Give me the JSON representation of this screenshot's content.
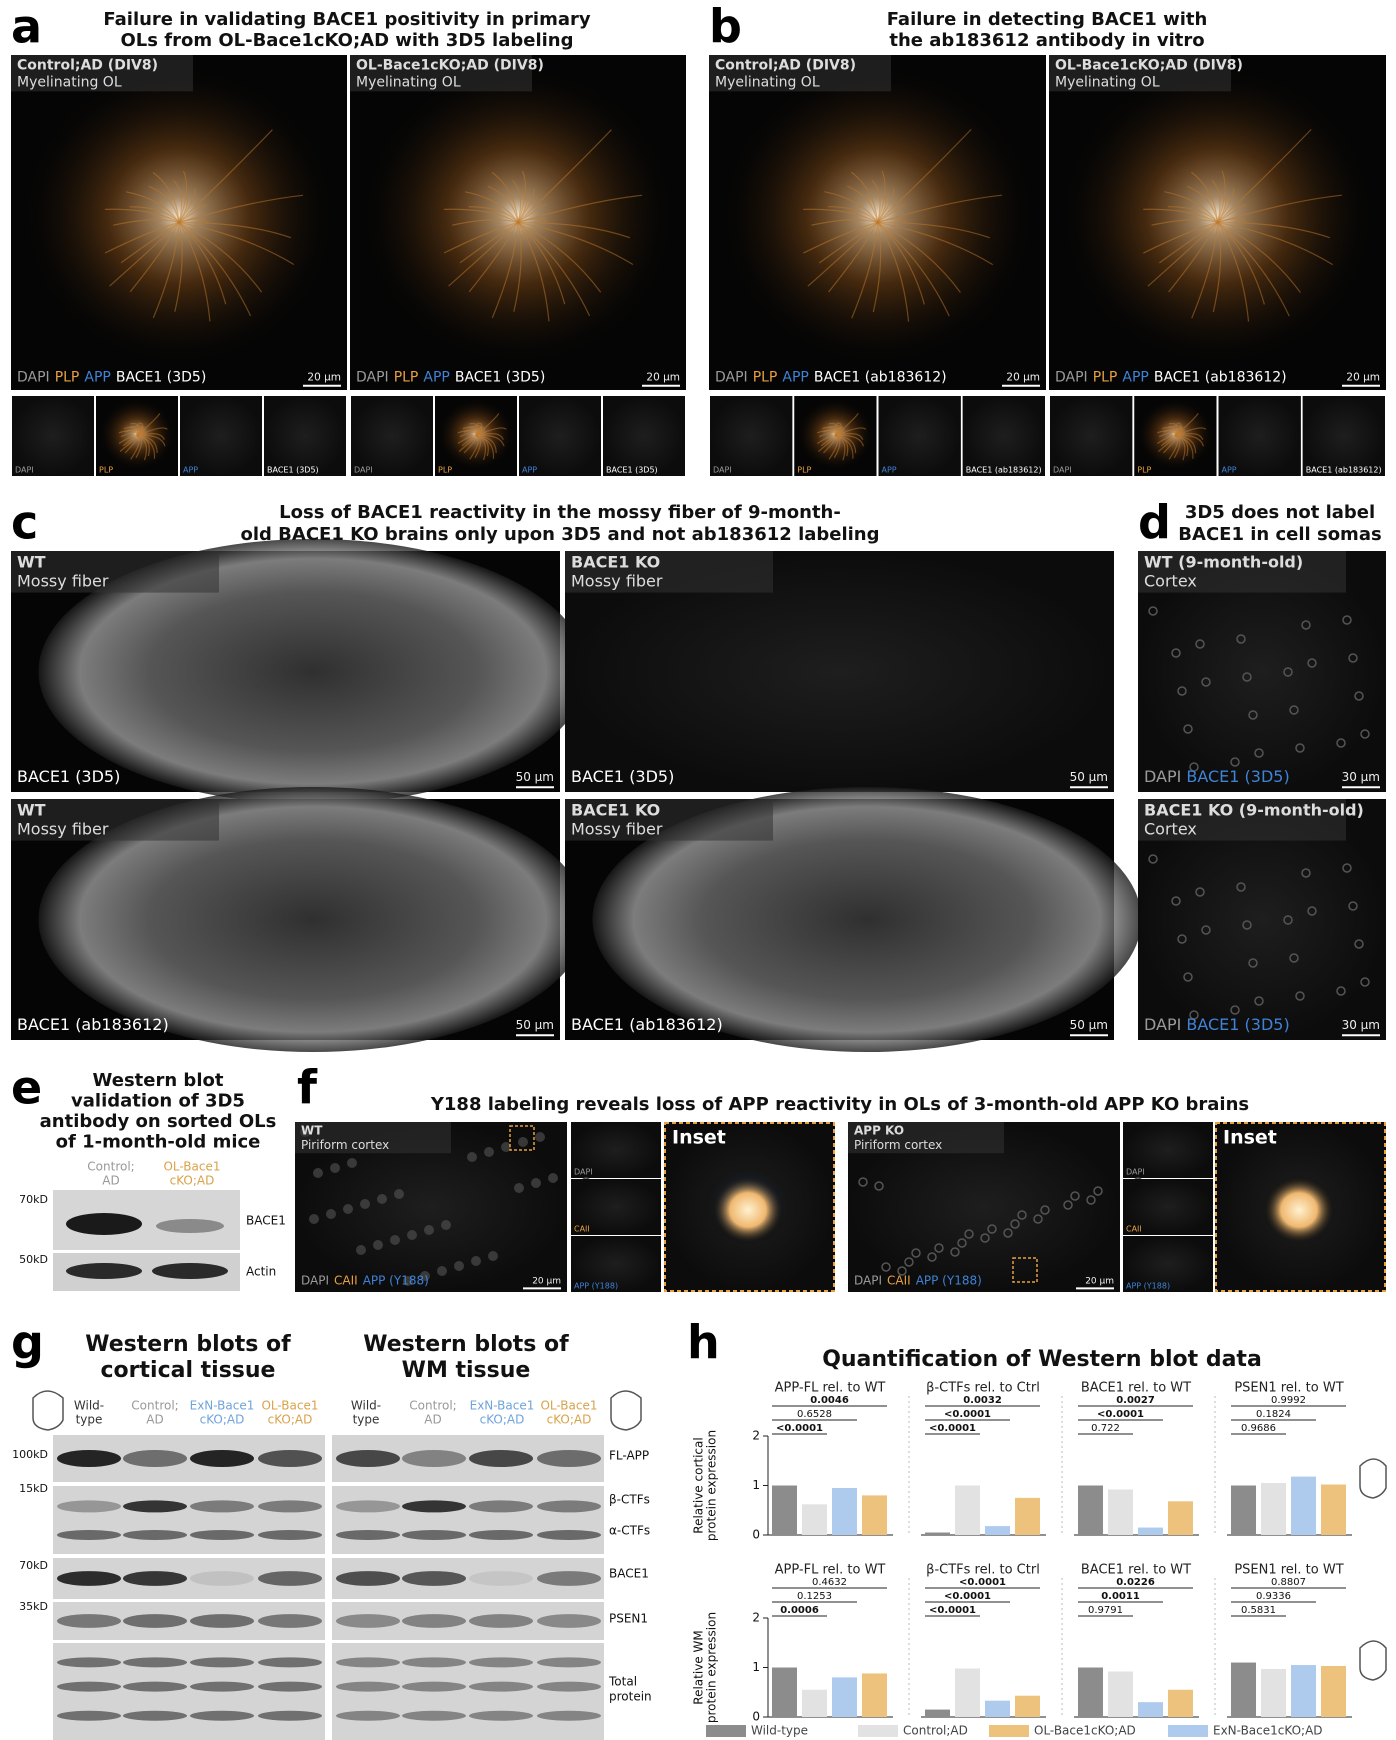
{
  "panels": {
    "a": {
      "letter": "a",
      "title": [
        "Failure in validating BACE1 positivity in primary",
        "OLs from OL-Bace1cKO;AD with 3D5 labeling"
      ],
      "channel_colors": [
        "#9a9a9a",
        "#e8a040",
        "#3f82d6",
        "#ffffff"
      ],
      "images": [
        {
          "label": [
            "Control;AD (DIV8)",
            "Myelinating OL"
          ],
          "channels": [
            "DAPI",
            "PLP",
            "APP",
            "BACE1 (3D5)"
          ],
          "scale": "20 µm",
          "thumbs": [
            "DAPI",
            "PLP",
            "APP",
            "BACE1 (3D5)"
          ]
        },
        {
          "label": [
            "OL-Bace1cKO;AD (DIV8)",
            "Myelinating OL"
          ],
          "channels": [
            "DAPI",
            "PLP",
            "APP",
            "BACE1 (3D5)"
          ],
          "scale": "20 µm",
          "thumbs": [
            "DAPI",
            "PLP",
            "APP",
            "BACE1 (3D5)"
          ]
        }
      ]
    },
    "b": {
      "letter": "b",
      "title": [
        "Failure in detecting BACE1 with",
        "the ab183612 antibody in vitro"
      ],
      "channel_colors": [
        "#9a9a9a",
        "#e8a040",
        "#3f82d6",
        "#ffffff"
      ],
      "images": [
        {
          "label": [
            "Control;AD (DIV8)",
            "Myelinating OL"
          ],
          "channels": [
            "DAPI",
            "PLP",
            "APP",
            "BACE1 (ab183612)"
          ],
          "scale": "20 µm",
          "thumbs": [
            "DAPI",
            "PLP",
            "APP",
            "BACE1 (ab183612)"
          ]
        },
        {
          "label": [
            "OL-Bace1cKO;AD (DIV8)",
            "Myelinating OL"
          ],
          "channels": [
            "DAPI",
            "PLP",
            "APP",
            "BACE1 (ab183612)"
          ],
          "scale": "20 µm",
          "thumbs": [
            "DAPI",
            "PLP",
            "APP",
            "BACE1 (ab183612)"
          ]
        }
      ]
    },
    "c": {
      "letter": "c",
      "title": [
        "Loss of BACE1 reactivity in the mossy fiber of 9-month-",
        "old BACE1 KO brains only upon 3D5 and not ab183612 labeling"
      ],
      "channel_colors": [
        "#ffffff"
      ],
      "images": [
        {
          "label": [
            "WT",
            "Mossy fiber"
          ],
          "channels": [
            "BACE1 (3D5)"
          ],
          "scale": "50 µm"
        },
        {
          "label": [
            "BACE1 KO",
            "Mossy fiber"
          ],
          "channels": [
            "BACE1 (3D5)"
          ],
          "scale": "50 µm"
        },
        {
          "label": [
            "WT",
            "Mossy fiber"
          ],
          "channels": [
            "BACE1 (ab183612)"
          ],
          "scale": "50 µm"
        },
        {
          "label": [
            "BACE1 KO",
            "Mossy fiber"
          ],
          "channels": [
            "BACE1 (ab183612)"
          ],
          "scale": "50 µm"
        }
      ]
    },
    "d": {
      "letter": "d",
      "title": [
        "3D5 does not label",
        "BACE1 in cell somas"
      ],
      "channel_colors": [
        "#9a9a9a",
        "#3f82d6"
      ],
      "images": [
        {
          "label": [
            "WT (9-month-old)",
            "Cortex"
          ],
          "channels": [
            "DAPI",
            "BACE1 (3D5)"
          ],
          "scale": "30 µm"
        },
        {
          "label": [
            "BACE1 KO (9-month-old)",
            "Cortex"
          ],
          "channels": [
            "DAPI",
            "BACE1 (3D5)"
          ],
          "scale": "30 µm"
        }
      ]
    },
    "e": {
      "letter": "e",
      "title": [
        "Western blot",
        "validation of 3D5",
        "antibody on sorted OLs",
        "of 1-month-old mice"
      ],
      "columns": [
        {
          "lines": [
            "Control;",
            "AD"
          ],
          "color": "#999999"
        },
        {
          "lines": [
            "OL-Bace1",
            "cKO;AD"
          ],
          "color": "#d9a24a"
        }
      ],
      "markers": [
        "70kD",
        "50kD"
      ],
      "bands": [
        "BACE1",
        "Actin"
      ]
    },
    "f": {
      "letter": "f",
      "title": [
        "Y188 labeling reveals loss of APP reactivity in OLs of 3-month-old APP KO brains"
      ],
      "channel_colors": [
        "#9a9a9a",
        "#e8a040",
        "#3f82d6"
      ],
      "images": [
        {
          "label": [
            "WT",
            "Piriform cortex"
          ],
          "channels": [
            "DAPI",
            "CAII",
            "APP (Y188)"
          ],
          "scale": "20 µm",
          "thumbs": [
            "DAPI",
            "CAII",
            "APP (Y188)"
          ],
          "inset": "Inset"
        },
        {
          "label": [
            "APP KO",
            "Piriform cortex"
          ],
          "channels": [
            "DAPI",
            "CAII",
            "APP (Y188)"
          ],
          "scale": "20 µm",
          "thumbs": [
            "DAPI",
            "CAII",
            "APP (Y188)"
          ],
          "inset": "Inset"
        }
      ]
    },
    "g": {
      "letter": "g",
      "titles": [
        [
          "Western blots of",
          "cortical tissue"
        ],
        [
          "Western blots of",
          "WM tissue"
        ]
      ],
      "columns": [
        {
          "lines": [
            "Wild-",
            "type"
          ],
          "color": "#333333"
        },
        {
          "lines": [
            "Control;",
            "AD"
          ],
          "color": "#999999"
        },
        {
          "lines": [
            "ExN-Bace1",
            "cKO;AD"
          ],
          "color": "#6fa3dc"
        },
        {
          "lines": [
            "OL-Bace1",
            "cKO;AD"
          ],
          "color": "#d9a24a"
        }
      ],
      "markers": [
        "100kD",
        "15kD",
        "70kD",
        "35kD"
      ],
      "bands": [
        "FL-APP",
        "β-CTFs",
        "α-CTFs",
        "BACE1",
        "PSEN1"
      ],
      "total": [
        "Total",
        "protein"
      ]
    },
    "h": {
      "letter": "h",
      "title": "Quantification of Western blot data",
      "ylabels": [
        [
          "Relative cortical",
          "protein expression"
        ],
        [
          "Relative WM",
          "protein expression"
        ]
      ],
      "legend": [
        {
          "name": "Wild-type",
          "color": "#8c8c8c"
        },
        {
          "name": "Control;AD",
          "color": "#e2e2e2"
        },
        {
          "name": "OL-Bace1cKO;AD",
          "color": "#edc27c"
        },
        {
          "name": "ExN-Bace1cKO;AD",
          "color": "#aecbee"
        }
      ]
    }
  },
  "chart_data": [
    {
      "type": "bar",
      "title": "APP-FL rel. to WT",
      "values": [
        1.0,
        0.62,
        0.95,
        0.8
      ],
      "colors": [
        "#8c8c8c",
        "#e2e2e2",
        "#aecbee",
        "#edc27c"
      ],
      "ylim": [
        0,
        2
      ],
      "yticks": [
        0,
        1,
        2
      ],
      "annotations": [
        {
          "label": "0.0046",
          "bold": true
        },
        {
          "label": "0.6528",
          "bold": false
        },
        {
          "label": "<0.0001",
          "bold": true
        }
      ]
    },
    {
      "type": "bar",
      "title": "β-CTFs rel. to Ctrl",
      "values": [
        0.05,
        1.0,
        0.18,
        0.75
      ],
      "colors": [
        "#8c8c8c",
        "#e2e2e2",
        "#aecbee",
        "#edc27c"
      ],
      "ylim": [
        0,
        2
      ],
      "annotations": [
        {
          "label": "0.0032",
          "bold": true
        },
        {
          "label": "<0.0001",
          "bold": true
        },
        {
          "label": "<0.0001",
          "bold": true
        }
      ]
    },
    {
      "type": "bar",
      "title": "BACE1 rel. to WT",
      "values": [
        1.0,
        0.92,
        0.15,
        0.68
      ],
      "colors": [
        "#8c8c8c",
        "#e2e2e2",
        "#aecbee",
        "#edc27c"
      ],
      "ylim": [
        0,
        2
      ],
      "annotations": [
        {
          "label": "0.0027",
          "bold": true
        },
        {
          "label": "<0.0001",
          "bold": true
        },
        {
          "label": "0.722",
          "bold": false
        }
      ]
    },
    {
      "type": "bar",
      "title": "PSEN1 rel. to WT",
      "values": [
        1.0,
        1.05,
        1.18,
        1.02
      ],
      "colors": [
        "#8c8c8c",
        "#e2e2e2",
        "#aecbee",
        "#edc27c"
      ],
      "ylim": [
        0,
        2
      ],
      "annotations": [
        {
          "label": "0.9992",
          "bold": false
        },
        {
          "label": "0.1824",
          "bold": false
        },
        {
          "label": "0.9686",
          "bold": false
        }
      ]
    },
    {
      "type": "bar",
      "title": "APP-FL rel. to WT",
      "values": [
        1.0,
        0.55,
        0.8,
        0.88
      ],
      "colors": [
        "#8c8c8c",
        "#e2e2e2",
        "#aecbee",
        "#edc27c"
      ],
      "ylim": [
        0,
        2
      ],
      "yticks": [
        0,
        1,
        2
      ],
      "annotations": [
        {
          "label": "0.4632",
          "bold": false
        },
        {
          "label": "0.1253",
          "bold": false
        },
        {
          "label": "0.0006",
          "bold": true
        }
      ]
    },
    {
      "type": "bar",
      "title": "β-CTFs rel. to Ctrl",
      "values": [
        0.15,
        0.98,
        0.33,
        0.43
      ],
      "colors": [
        "#8c8c8c",
        "#e2e2e2",
        "#aecbee",
        "#edc27c"
      ],
      "ylim": [
        0,
        2
      ],
      "annotations": [
        {
          "label": "<0.0001",
          "bold": true
        },
        {
          "label": "<0.0001",
          "bold": true
        },
        {
          "label": "<0.0001",
          "bold": true
        }
      ]
    },
    {
      "type": "bar",
      "title": "BACE1 rel. to WT",
      "values": [
        1.0,
        0.92,
        0.3,
        0.55
      ],
      "colors": [
        "#8c8c8c",
        "#e2e2e2",
        "#aecbee",
        "#edc27c"
      ],
      "ylim": [
        0,
        2
      ],
      "annotations": [
        {
          "label": "0.0226",
          "bold": true
        },
        {
          "label": "0.0011",
          "bold": true
        },
        {
          "label": "0.9791",
          "bold": false
        }
      ]
    },
    {
      "type": "bar",
      "title": "PSEN1 rel. to WT",
      "values": [
        1.1,
        0.97,
        1.05,
        1.03
      ],
      "colors": [
        "#8c8c8c",
        "#e2e2e2",
        "#aecbee",
        "#edc27c"
      ],
      "ylim": [
        0,
        2
      ],
      "annotations": [
        {
          "label": "0.8807",
          "bold": false
        },
        {
          "label": "0.9336",
          "bold": false
        },
        {
          "label": "0.5831",
          "bold": false
        }
      ]
    }
  ]
}
